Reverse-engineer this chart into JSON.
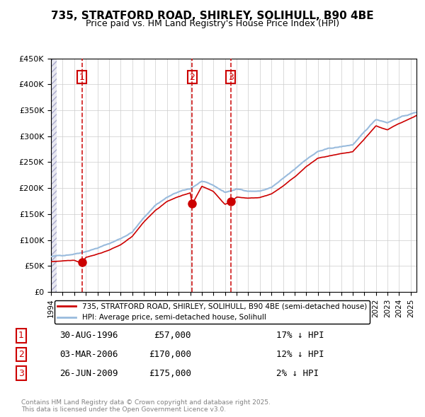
{
  "title1": "735, STRATFORD ROAD, SHIRLEY, SOLIHULL, B90 4BE",
  "title2": "Price paid vs. HM Land Registry's House Price Index (HPI)",
  "ylabel": "",
  "ylim": [
    0,
    450000
  ],
  "yticks": [
    0,
    50000,
    100000,
    150000,
    200000,
    250000,
    300000,
    350000,
    400000,
    450000
  ],
  "xlim_start": 1994.0,
  "xlim_end": 2025.5,
  "sale_dates": [
    1996.66,
    2006.17,
    2009.49
  ],
  "sale_prices": [
    57000,
    170000,
    175000
  ],
  "sale_labels": [
    "1",
    "2",
    "3"
  ],
  "legend_line1": "735, STRATFORD ROAD, SHIRLEY, SOLIHULL, B90 4BE (semi-detached house)",
  "legend_line2": "HPI: Average price, semi-detached house, Solihull",
  "table_rows": [
    [
      "1",
      "30-AUG-1996",
      "£57,000",
      "17% ↓ HPI"
    ],
    [
      "2",
      "03-MAR-2006",
      "£170,000",
      "12% ↓ HPI"
    ],
    [
      "3",
      "26-JUN-2009",
      "£175,000",
      "2% ↓ HPI"
    ]
  ],
  "footer": "Contains HM Land Registry data © Crown copyright and database right 2025.\nThis data is licensed under the Open Government Licence v3.0.",
  "line_color_red": "#cc0000",
  "line_color_blue": "#6699cc",
  "hpi_color": "#99bbdd",
  "grid_color": "#cccccc",
  "hatch_color": "#ddddee",
  "bg_color": "#ffffff",
  "sale_dline_color": "#cc0000",
  "box_color": "#cc0000"
}
